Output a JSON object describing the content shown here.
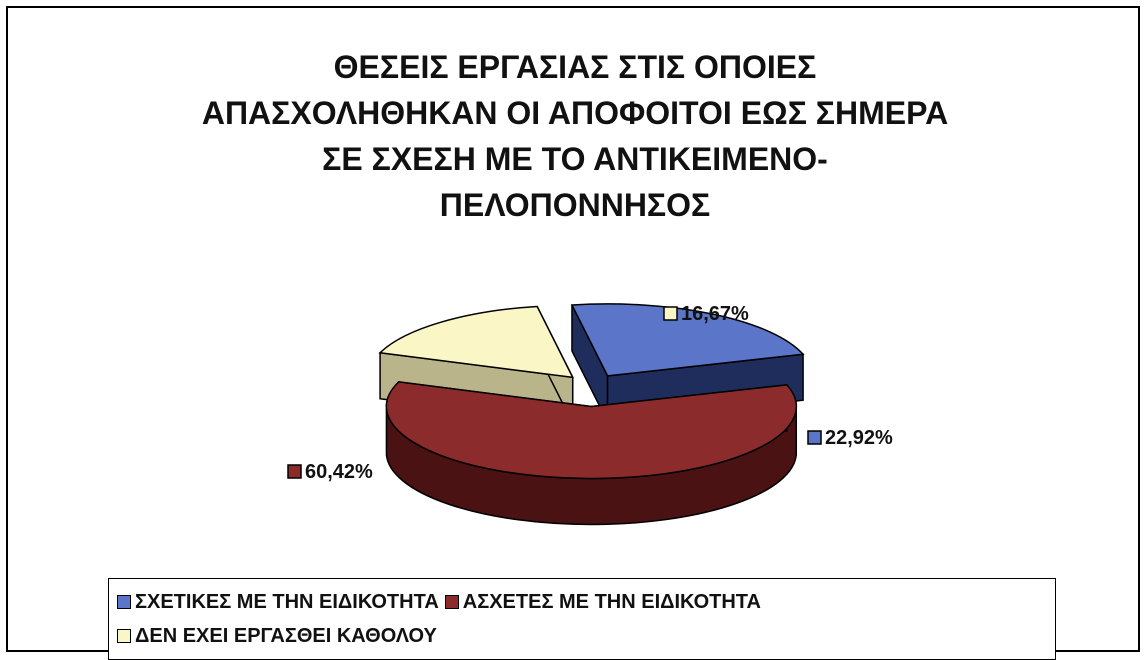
{
  "chart_data": {
    "type": "pie",
    "title": "ΘΕΣΕΙΣ ΕΡΓΑΣΙΑΣ ΣΤΙΣ ΟΠΟΙΕΣ\nΑΠΑΣΧΟΛΗΘΗΚΑΝ ΟΙ ΑΠΟΦΟΙΤΟΙ ΕΩΣ ΣΗΜΕΡΑ\nΣΕ ΣΧΕΣΗ ΜΕ ΤΟ ΑΝΤΙΚΕΙΜΕΝΟ-\nΠΕΛΟΠΟΝΝΗΣΟΣ",
    "slices": [
      {
        "name": "ΣΧΕΤΙΚΕΣ ΜΕ ΤΗΝ ΕΙΔΙΚΟΤΗΤΑ",
        "value": 22.92,
        "label": "22,92%",
        "color": "#5b76c9",
        "side_color": "#1f2d5c"
      },
      {
        "name": "ΑΣΧΕΤΕΣ ΜΕ ΤΗΝ ΕΙΔΙΚΟΤΗΤΑ",
        "value": 60.42,
        "label": "60,42%",
        "color": "#8b2b2b",
        "side_color": "#4a1212"
      },
      {
        "name": "ΔΕΝ ΕΧΕΙ ΕΡΓΑΣΘΕΙ ΚΑΘΟΛΟΥ",
        "value": 16.67,
        "label": "16,67%",
        "color": "#fbf6c6",
        "side_color": "#b9b48a"
      }
    ],
    "legend_position": "bottom",
    "style": "3d-exploded-pie"
  }
}
